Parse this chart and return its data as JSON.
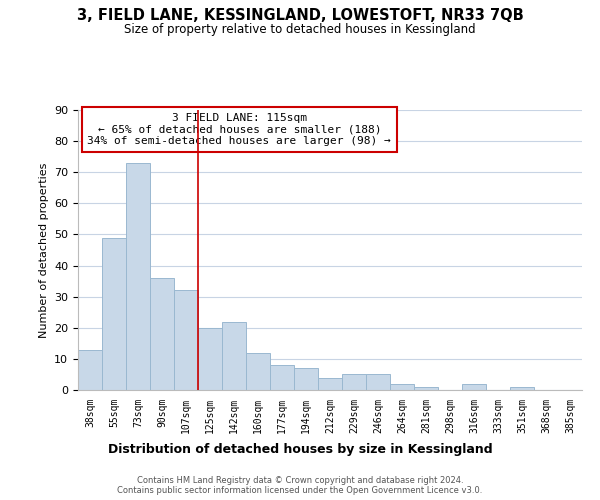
{
  "title1": "3, FIELD LANE, KESSINGLAND, LOWESTOFT, NR33 7QB",
  "title2": "Size of property relative to detached houses in Kessingland",
  "xlabel": "Distribution of detached houses by size in Kessingland",
  "ylabel": "Number of detached properties",
  "bin_labels": [
    "38sqm",
    "55sqm",
    "73sqm",
    "90sqm",
    "107sqm",
    "125sqm",
    "142sqm",
    "160sqm",
    "177sqm",
    "194sqm",
    "212sqm",
    "229sqm",
    "246sqm",
    "264sqm",
    "281sqm",
    "298sqm",
    "316sqm",
    "333sqm",
    "351sqm",
    "368sqm",
    "385sqm"
  ],
  "bar_values": [
    13,
    49,
    73,
    36,
    32,
    20,
    22,
    12,
    8,
    7,
    4,
    5,
    5,
    2,
    1,
    0,
    2,
    0,
    1,
    0,
    0
  ],
  "bar_color": "#c8d8e8",
  "bar_edge_color": "#9ab8d0",
  "vline_x": 4.5,
  "vline_color": "#cc0000",
  "annotation_title": "3 FIELD LANE: 115sqm",
  "annotation_line1": "← 65% of detached houses are smaller (188)",
  "annotation_line2": "34% of semi-detached houses are larger (98) →",
  "ylim": [
    0,
    90
  ],
  "yticks": [
    0,
    10,
    20,
    30,
    40,
    50,
    60,
    70,
    80,
    90
  ],
  "footer1": "Contains HM Land Registry data © Crown copyright and database right 2024.",
  "footer2": "Contains public sector information licensed under the Open Government Licence v3.0.",
  "background_color": "#ffffff",
  "grid_color": "#c8d4e4"
}
